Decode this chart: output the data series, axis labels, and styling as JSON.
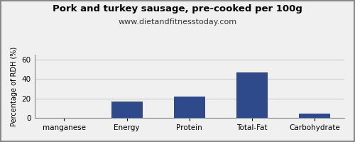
{
  "categories": [
    "manganese",
    "Energy",
    "Protein",
    "Total-Fat",
    "Carbohydrate"
  ],
  "values": [
    0.3,
    17,
    22,
    47,
    4
  ],
  "bar_color": "#2e4a8a",
  "title": "Pork and turkey sausage, pre-cooked per 100g",
  "subtitle": "www.dietandfitnesstoday.com",
  "ylabel": "Percentage of RDH (%)",
  "ylim": [
    0,
    65
  ],
  "yticks": [
    0,
    20,
    40,
    60
  ],
  "background_color": "#f0f0f0",
  "title_fontsize": 9.5,
  "subtitle_fontsize": 8.0,
  "ylabel_fontsize": 7.0,
  "xtick_fontsize": 7.5,
  "ytick_fontsize": 7.5,
  "grid_color": "#cccccc",
  "border_color": "#888888"
}
